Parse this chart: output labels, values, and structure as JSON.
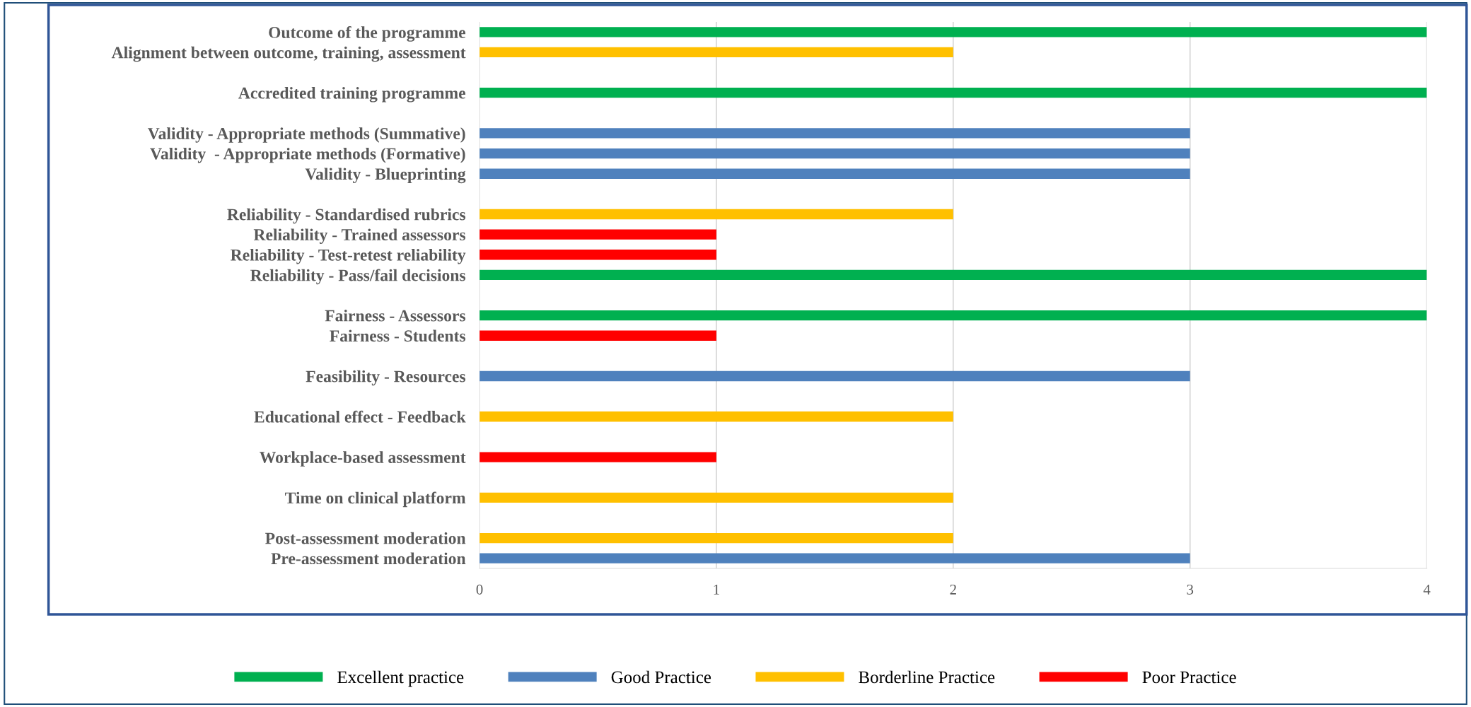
{
  "chart_data": {
    "type": "bar",
    "orientation": "horizontal",
    "categories": [
      "Outcome of the programme",
      "Alignment between outcome, training, assessment",
      null,
      "Accredited training programme",
      null,
      "Validity - Appropriate methods (Summative)",
      "Validity  - Appropriate methods (Formative)",
      "Validity - Blueprinting",
      null,
      "Reliability - Standardised rubrics",
      "Reliability - Trained assessors",
      "Reliability - Test-retest reliability",
      "Reliability - Pass/fail decisions",
      null,
      "Fairness - Assessors",
      "Fairness - Students",
      null,
      "Feasibility - Resources",
      null,
      "Educational effect - Feedback",
      null,
      "Workplace-based assessment",
      null,
      "Time on clinical platform",
      null,
      "Post-assessment moderation",
      "Pre-assessment moderation"
    ],
    "series": [
      {
        "name": "Excellent practice",
        "color": "#00b050",
        "values": [
          4,
          null,
          null,
          4,
          null,
          null,
          null,
          null,
          null,
          null,
          null,
          null,
          4,
          null,
          4,
          null,
          null,
          null,
          null,
          null,
          null,
          null,
          null,
          null,
          null,
          null,
          null
        ]
      },
      {
        "name": "Good Practice",
        "color": "#4f81bd",
        "values": [
          null,
          null,
          null,
          null,
          null,
          3,
          3,
          3,
          null,
          null,
          null,
          null,
          null,
          null,
          null,
          null,
          null,
          3,
          null,
          null,
          null,
          null,
          null,
          null,
          null,
          null,
          3
        ]
      },
      {
        "name": "Borderline Practice",
        "color": "#ffc000",
        "values": [
          null,
          2,
          null,
          null,
          null,
          null,
          null,
          null,
          null,
          2,
          null,
          null,
          null,
          null,
          null,
          null,
          null,
          null,
          null,
          2,
          null,
          null,
          null,
          2,
          null,
          2,
          null
        ]
      },
      {
        "name": "Poor Practice",
        "color": "#ff0000",
        "values": [
          null,
          null,
          null,
          null,
          null,
          null,
          null,
          null,
          null,
          null,
          1,
          1,
          null,
          null,
          null,
          1,
          null,
          null,
          null,
          null,
          null,
          1,
          null,
          null,
          null,
          null,
          null
        ]
      }
    ],
    "xlim": [
      0,
      4
    ],
    "xticks": [
      0,
      1,
      2,
      3,
      4
    ],
    "grid": "x",
    "legend": "bottom"
  }
}
